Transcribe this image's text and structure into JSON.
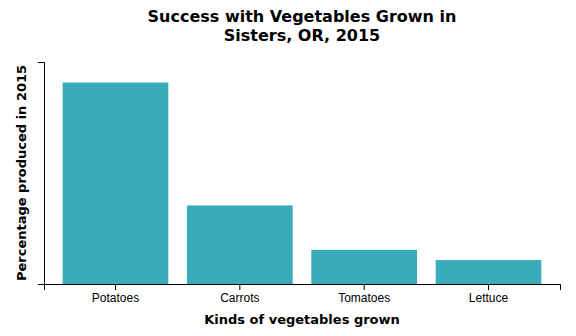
{
  "chart_data": {
    "type": "bar",
    "title": "Success with Vegetables Grown in\nSisters, OR, 2015",
    "xlabel": "Kinds of vegetables grown",
    "ylabel": "Percentage produced in 2015",
    "categories": [
      "Potatoes",
      "Carrots",
      "Tomatoes",
      "Lettuce"
    ],
    "values": [
      59,
      23,
      10,
      7
    ],
    "color": "#3aabbb",
    "ylim": [
      0,
      65
    ],
    "yticks": [],
    "grid": false,
    "tick_labels": "x"
  }
}
